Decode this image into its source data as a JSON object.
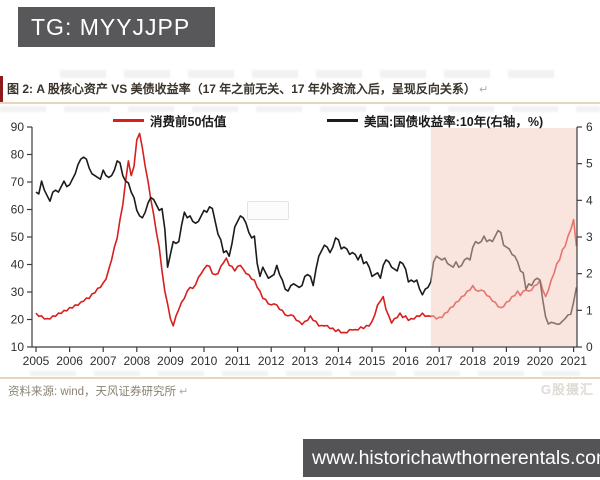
{
  "badge": {
    "text": "TG: MYYJJPP"
  },
  "title": {
    "text": "图 2: A 股核心资产 VS 美债收益率（17 年之前无关、17 年外资流入后，呈现反向关系）",
    "return_mark": "↵"
  },
  "legend": [
    {
      "label": "消费前50估值",
      "color": "#d71f1e"
    },
    {
      "label": "美国:国债收益率:10年(右轴，%)",
      "color": "#1b1b1b"
    }
  ],
  "source": {
    "text": "资料来源: wind，天风证券研究所",
    "return_mark": "↵"
  },
  "watermark": {
    "text": "G股摄汇"
  },
  "bottom_bar": {
    "url": "www.historichawthornerentals.com"
  },
  "chart_data": {
    "type": "line",
    "title": "A股核心资产 VS 美债收益率",
    "x_ticks": [
      2005,
      2006,
      2007,
      2008,
      2009,
      2010,
      2011,
      2012,
      2013,
      2014,
      2015,
      2016,
      2017,
      2018,
      2019,
      2020,
      2021
    ],
    "left_axis": {
      "label": "消费前50估值",
      "min": 10,
      "max": 90,
      "ticks": [
        90,
        80,
        70,
        60,
        50,
        40,
        30,
        20,
        10
      ]
    },
    "right_axis": {
      "label": "美国:国债收益率:10年(%)",
      "min": 0,
      "max": 6,
      "ticks": [
        6,
        5,
        4,
        3,
        2,
        1,
        0
      ]
    },
    "grid": false,
    "legend_position": "top",
    "highlight": {
      "from_year": 2016.75,
      "to_year": 2021.1,
      "color": "rgba(244,204,190,0.5)"
    },
    "sampling": {
      "start_year": 2005,
      "points_per_year": 12
    },
    "series": [
      {
        "name": "消费前50估值",
        "axis": "left",
        "color": "#d71f1e",
        "values": [
          22,
          21.5,
          21,
          20.5,
          20,
          20.5,
          21,
          21.5,
          22,
          22.5,
          23,
          23.5,
          24,
          24.5,
          25,
          25.5,
          26,
          27,
          27.5,
          28,
          29,
          30,
          31,
          32,
          33,
          35,
          38,
          42,
          46,
          50,
          56,
          62,
          70,
          78,
          72,
          76,
          85,
          88,
          82,
          76,
          70,
          64,
          58,
          52,
          46,
          38,
          30,
          26,
          20,
          18,
          21,
          24,
          26,
          28,
          30,
          32,
          31,
          33,
          35,
          37,
          38,
          40,
          39,
          37,
          36,
          37,
          39,
          41,
          42,
          40,
          39,
          38,
          39,
          40,
          38,
          37,
          36,
          35,
          34,
          32,
          30,
          28,
          27,
          26,
          25,
          26,
          25,
          24,
          23,
          22,
          21,
          22,
          21,
          20,
          19,
          18.5,
          19,
          20,
          21,
          20,
          19,
          18,
          17.5,
          18,
          17.5,
          17,
          16.5,
          16,
          16,
          15.5,
          15,
          15.5,
          16,
          16.5,
          16,
          16.5,
          17,
          17,
          17.5,
          18,
          19,
          22,
          25,
          27,
          28,
          24,
          21,
          19,
          20,
          21,
          22,
          21,
          21,
          20,
          20,
          20.5,
          21,
          21.5,
          22,
          21.5,
          21,
          21.5,
          21,
          20.5,
          20.5,
          21,
          22,
          23,
          24,
          25,
          26,
          27,
          28,
          29,
          30,
          31,
          32,
          31,
          30,
          31,
          30,
          29,
          28,
          27,
          26,
          25,
          24,
          25,
          26,
          27,
          28,
          29,
          30,
          29,
          30,
          31,
          30,
          31,
          32,
          33,
          34,
          31,
          28,
          31,
          34,
          37,
          40,
          42,
          45,
          47,
          50,
          53,
          56,
          47
        ]
      },
      {
        "name": "美国:国债收益率:10年(右轴，%)",
        "axis": "right",
        "color": "#1b1b1b",
        "values": [
          4.2,
          4.2,
          4.5,
          4.3,
          4.1,
          4.0,
          4.2,
          4.3,
          4.2,
          4.4,
          4.5,
          4.4,
          4.4,
          4.6,
          4.7,
          5.0,
          5.1,
          5.2,
          5.1,
          4.9,
          4.7,
          4.7,
          4.6,
          4.6,
          4.8,
          4.7,
          4.6,
          4.7,
          4.8,
          5.1,
          5.0,
          4.7,
          4.5,
          4.5,
          4.2,
          4.1,
          3.7,
          3.6,
          3.5,
          3.7,
          3.9,
          4.1,
          4.0,
          3.9,
          3.7,
          3.8,
          3.2,
          2.2,
          2.5,
          2.9,
          2.8,
          2.9,
          3.3,
          3.7,
          3.5,
          3.6,
          3.4,
          3.4,
          3.4,
          3.6,
          3.7,
          3.7,
          3.8,
          3.8,
          3.4,
          3.1,
          2.9,
          2.6,
          2.6,
          2.5,
          2.8,
          3.3,
          3.4,
          3.6,
          3.5,
          3.4,
          3.1,
          3.0,
          3.0,
          2.3,
          1.9,
          2.2,
          2.0,
          1.9,
          1.9,
          2.0,
          2.2,
          2.0,
          1.8,
          1.6,
          1.5,
          1.7,
          1.7,
          1.7,
          1.6,
          1.7,
          1.9,
          2.0,
          1.9,
          1.7,
          2.1,
          2.5,
          2.6,
          2.8,
          2.7,
          2.6,
          2.7,
          3.0,
          2.9,
          2.7,
          2.7,
          2.7,
          2.5,
          2.6,
          2.5,
          2.4,
          2.5,
          2.3,
          2.3,
          2.2,
          1.9,
          2.0,
          2.0,
          1.9,
          2.2,
          2.4,
          2.3,
          2.2,
          2.1,
          2.1,
          2.3,
          2.3,
          2.1,
          1.8,
          1.8,
          1.8,
          1.8,
          1.6,
          1.4,
          1.6,
          1.6,
          1.8,
          2.3,
          2.5,
          2.4,
          2.4,
          2.4,
          2.3,
          2.2,
          2.2,
          2.3,
          2.2,
          2.2,
          2.4,
          2.4,
          2.4,
          2.7,
          2.9,
          2.8,
          2.9,
          3.0,
          2.9,
          2.9,
          2.9,
          3.0,
          3.2,
          3.1,
          2.8,
          2.7,
          2.7,
          2.5,
          2.5,
          2.3,
          2.1,
          2.0,
          1.6,
          1.7,
          1.7,
          1.8,
          1.9,
          1.8,
          1.3,
          0.8,
          0.65,
          0.65,
          0.68,
          0.6,
          0.65,
          0.68,
          0.8,
          0.85,
          0.92,
          1.2,
          1.65
        ]
      }
    ]
  }
}
